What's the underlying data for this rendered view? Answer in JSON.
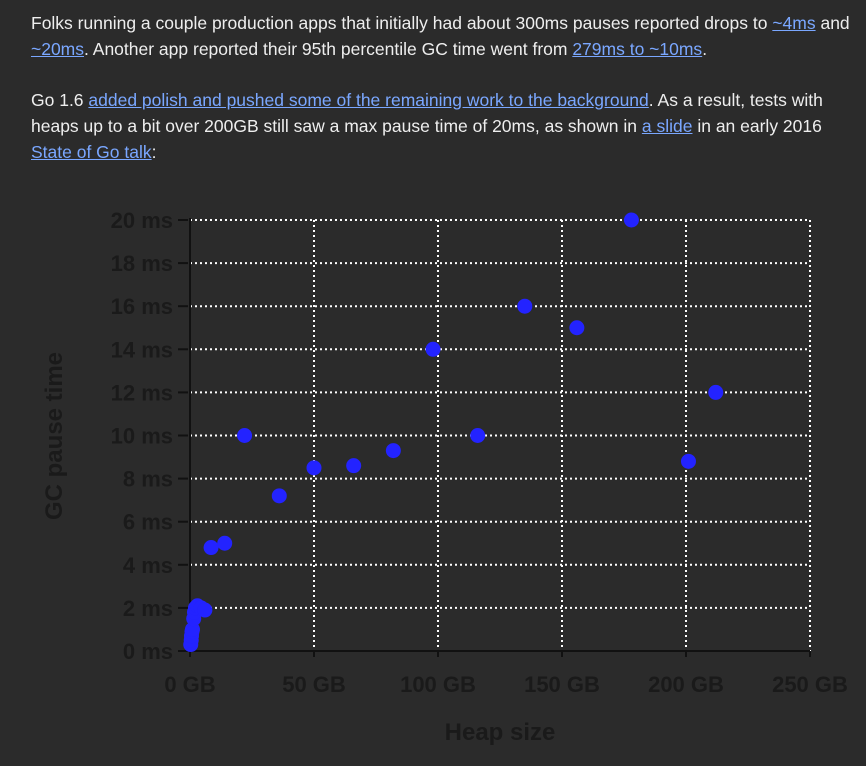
{
  "article": {
    "p1": {
      "t1": "Folks running a couple production apps that initially had about 300ms pauses reported drops to ",
      "l1": "~4ms",
      "t2": " and ",
      "l2": "~20ms",
      "t3": ". Another app reported their 95th percentile GC time went from ",
      "l3": "279ms to ~10ms",
      "t4": "."
    },
    "p2": {
      "t1": "Go 1.6 ",
      "l1": "added polish and pushed some of the remaining work to the background",
      "t2": ". As a result, tests with heaps up to a bit over 200GB still saw a max pause time of 20ms, as shown in ",
      "l2": "a slide",
      "t3": " in an early 2016 ",
      "l3": "State of Go talk",
      "t4": ":"
    }
  },
  "colors": {
    "page_bg": "#2b2b2b",
    "text": "#eeeeee",
    "link": "#7aa7ff",
    "point": "#2323ff",
    "grid": "#ffffff",
    "tick_text": "#1a1a1a"
  },
  "chart_data": {
    "type": "scatter",
    "title": "",
    "xlabel": "Heap size",
    "ylabel": "GC pause time",
    "xlim": [
      0,
      250
    ],
    "ylim": [
      0,
      20
    ],
    "grid": true,
    "x_ticks": [
      0,
      50,
      100,
      150,
      200,
      250
    ],
    "x_tick_labels": [
      "0 GB",
      "50 GB",
      "100 GB",
      "150 GB",
      "200 GB",
      "250 GB"
    ],
    "y_ticks": [
      0,
      2,
      4,
      6,
      8,
      10,
      12,
      14,
      16,
      18,
      20
    ],
    "y_tick_labels": [
      "0 ms",
      "2 ms",
      "4 ms",
      "6 ms",
      "8 ms",
      "10 ms",
      "12 ms",
      "14 ms",
      "16 ms",
      "18 ms",
      "20 ms"
    ],
    "series": [
      {
        "color": "#2323ff",
        "points": [
          [
            0.3,
            0.3
          ],
          [
            0.5,
            0.5
          ],
          [
            0.6,
            0.7
          ],
          [
            0.8,
            0.9
          ],
          [
            1.0,
            1.0
          ],
          [
            1.5,
            1.5
          ],
          [
            1.8,
            1.8
          ],
          [
            2.2,
            2.0
          ],
          [
            3.0,
            2.1
          ],
          [
            4.5,
            2.0
          ],
          [
            6.0,
            1.9
          ],
          [
            8.5,
            4.8
          ],
          [
            14,
            5.0
          ],
          [
            22,
            10.0
          ],
          [
            36,
            7.2
          ],
          [
            50,
            8.5
          ],
          [
            66,
            8.6
          ],
          [
            82,
            9.3
          ],
          [
            98,
            14.0
          ],
          [
            116,
            10.0
          ],
          [
            135,
            16.0
          ],
          [
            156,
            15.0
          ],
          [
            178,
            20.0
          ],
          [
            201,
            8.8
          ],
          [
            212,
            12.0
          ]
        ]
      }
    ]
  }
}
